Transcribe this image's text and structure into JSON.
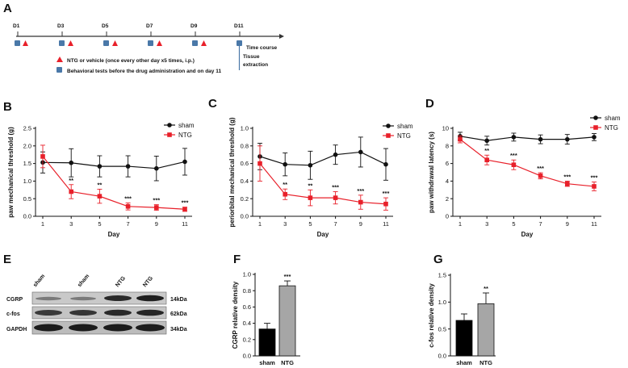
{
  "colors": {
    "sham": "#111111",
    "ntg": "#e8202a",
    "bar_sham": "#000000",
    "bar_ntg": "#a6a6a6",
    "marker_blue": "#4a78a8",
    "tri_red": "#e8202a"
  },
  "panels": {
    "A": "A",
    "B": "B",
    "C": "C",
    "D": "D",
    "E": "E",
    "F": "F",
    "G": "G"
  },
  "timeline": {
    "days": [
      "D1",
      "D3",
      "D5",
      "D7",
      "D9",
      "D11"
    ],
    "time_course": "Time course",
    "tissue_1": "Tissue",
    "tissue_2": "extraction",
    "legend_ntg": "NTG or vehicle (once every other day x5 times, i.p.)",
    "legend_behav": "Behavioral tests before the drug administration and on day 11"
  },
  "western": {
    "lanes": [
      "sham",
      "sham",
      "NTG",
      "NTG"
    ],
    "rows": [
      {
        "protein": "CGRP",
        "size": "14kDa"
      },
      {
        "protein": "c-fos",
        "size": "62kDa"
      },
      {
        "protein": "GAPDH",
        "size": "34kDa"
      }
    ]
  },
  "chart_data": [
    {
      "panel": "B",
      "type": "line",
      "ylabel": "paw mechanical threshold (g)",
      "xlabel": "Day",
      "x": [
        1,
        3,
        5,
        7,
        9,
        11
      ],
      "ylim": [
        0,
        2.5
      ],
      "yticks": [
        "0.0",
        "0.5",
        "1.0",
        "1.5",
        "2.0",
        "2.5"
      ],
      "series": [
        {
          "name": "sham",
          "values": [
            1.53,
            1.52,
            1.42,
            1.42,
            1.36,
            1.55
          ],
          "err": [
            0.3,
            0.4,
            0.3,
            0.3,
            0.35,
            0.38
          ]
        },
        {
          "name": "NTG",
          "values": [
            1.7,
            0.7,
            0.57,
            0.28,
            0.25,
            0.2
          ],
          "err": [
            0.32,
            0.2,
            0.2,
            0.1,
            0.08,
            0.06
          ]
        }
      ],
      "significance": [
        "",
        "**",
        "**",
        "***",
        "***",
        "***"
      ]
    },
    {
      "panel": "C",
      "type": "line",
      "ylabel": "periorbital mechanical threshold (g)",
      "xlabel": "Day",
      "x": [
        1,
        3,
        5,
        7,
        9,
        11
      ],
      "ylim": [
        0,
        1.0
      ],
      "yticks": [
        "0.0",
        "0.2",
        "0.4",
        "0.6",
        "0.8",
        "1.0"
      ],
      "series": [
        {
          "name": "sham",
          "values": [
            0.68,
            0.59,
            0.58,
            0.7,
            0.73,
            0.59
          ],
          "err": [
            0.15,
            0.13,
            0.16,
            0.11,
            0.17,
            0.18
          ]
        },
        {
          "name": "NTG",
          "values": [
            0.6,
            0.25,
            0.21,
            0.21,
            0.16,
            0.14
          ],
          "err": [
            0.2,
            0.06,
            0.09,
            0.07,
            0.08,
            0.07
          ]
        }
      ],
      "significance": [
        "",
        "**",
        "**",
        "***",
        "***",
        "***"
      ]
    },
    {
      "panel": "D",
      "type": "line",
      "ylabel": "paw withdrawal latency (s)",
      "xlabel": "Day",
      "x": [
        1,
        3,
        5,
        7,
        9,
        11
      ],
      "ylim": [
        0,
        10
      ],
      "yticks": [
        "0",
        "2",
        "4",
        "6",
        "8",
        "10"
      ],
      "series": [
        {
          "name": "sham",
          "values": [
            9.1,
            8.6,
            9.0,
            8.75,
            8.75,
            9.0
          ],
          "err": [
            0.45,
            0.5,
            0.45,
            0.5,
            0.55,
            0.4
          ]
        },
        {
          "name": "NTG",
          "values": [
            8.75,
            6.4,
            5.85,
            4.6,
            3.7,
            3.4
          ],
          "err": [
            0.4,
            0.55,
            0.55,
            0.35,
            0.3,
            0.5
          ]
        }
      ],
      "significance": [
        "",
        "**",
        "***",
        "***",
        "***",
        "***"
      ]
    },
    {
      "panel": "F",
      "type": "bar",
      "ylabel": "CGRP relative density",
      "categories": [
        "sham",
        "NTG"
      ],
      "values": [
        0.33,
        0.86
      ],
      "err": [
        0.07,
        0.06
      ],
      "ylim": [
        0,
        1.0
      ],
      "yticks": [
        "0.0",
        "0.2",
        "0.4",
        "0.6",
        "0.8",
        "1.0"
      ],
      "significance": [
        "",
        "***"
      ]
    },
    {
      "panel": "G",
      "type": "bar",
      "ylabel": "c-fos relative density",
      "categories": [
        "sham",
        "NTG"
      ],
      "values": [
        0.66,
        0.97
      ],
      "err": [
        0.12,
        0.2
      ],
      "ylim": [
        0,
        1.5
      ],
      "yticks": [
        "0.0",
        "0.5",
        "1.0",
        "1.5"
      ],
      "significance": [
        "",
        "**"
      ]
    }
  ]
}
